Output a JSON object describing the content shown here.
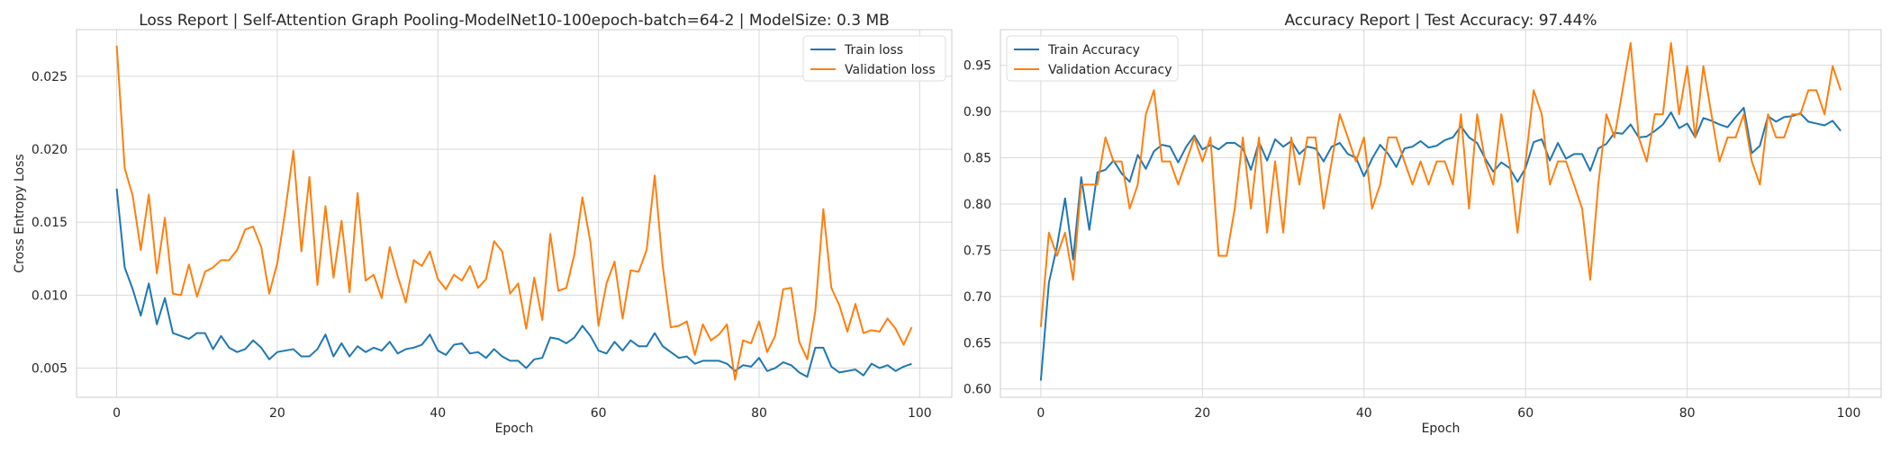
{
  "colors": {
    "train": "#1f77b4",
    "validation": "#ff7f0e",
    "grid": "#d9d9d9",
    "frame": "#cccccc"
  },
  "chart_data": [
    {
      "type": "line",
      "title": "Loss Report | Self-Attention Graph Pooling-ModelNet10-100epoch-batch=64-2 | ModelSize: 0.3 MB",
      "xlabel": "Epoch",
      "ylabel": "Cross Entropy Loss",
      "xlim": [
        -5,
        104
      ],
      "ylim": [
        0.003,
        0.0282
      ],
      "xticks": [
        0,
        20,
        40,
        60,
        80,
        100
      ],
      "yticks": [
        0.005,
        0.01,
        0.015,
        0.02,
        0.025
      ],
      "ytick_labels": [
        "0.005",
        "0.010",
        "0.015",
        "0.020",
        "0.025"
      ],
      "grid": true,
      "legend_position": "top-right",
      "series": [
        {
          "name": "Train loss",
          "color": "#1f77b4",
          "values": [
            0.0173,
            0.0119,
            0.0104,
            0.0086,
            0.0108,
            0.008,
            0.0098,
            0.0074,
            0.0072,
            0.007,
            0.0074,
            0.0074,
            0.0063,
            0.0072,
            0.0064,
            0.0061,
            0.0063,
            0.0069,
            0.0064,
            0.0056,
            0.0061,
            0.0062,
            0.0063,
            0.0058,
            0.0058,
            0.0063,
            0.0073,
            0.0058,
            0.0067,
            0.0058,
            0.0065,
            0.0061,
            0.0064,
            0.0062,
            0.0068,
            0.006,
            0.0063,
            0.0064,
            0.0066,
            0.0073,
            0.0062,
            0.0059,
            0.0066,
            0.0067,
            0.006,
            0.0061,
            0.0057,
            0.0063,
            0.0058,
            0.0055,
            0.0055,
            0.005,
            0.0056,
            0.0057,
            0.0071,
            0.007,
            0.0067,
            0.0071,
            0.0079,
            0.0072,
            0.0062,
            0.006,
            0.0068,
            0.0062,
            0.0069,
            0.0065,
            0.0065,
            0.0074,
            0.0065,
            0.0061,
            0.0057,
            0.0058,
            0.0053,
            0.0055,
            0.0055,
            0.0055,
            0.0053,
            0.0048,
            0.0052,
            0.0051,
            0.0057,
            0.0048,
            0.005,
            0.0054,
            0.0052,
            0.0047,
            0.0044,
            0.0064,
            0.0064,
            0.0051,
            0.0047,
            0.0048,
            0.0049,
            0.0045,
            0.0053,
            0.005,
            0.0052,
            0.0048,
            0.0051,
            0.0053
          ]
        },
        {
          "name": "Validation loss",
          "color": "#ff7f0e",
          "values": [
            0.0271,
            0.0187,
            0.0168,
            0.0131,
            0.0169,
            0.0115,
            0.0153,
            0.0101,
            0.01,
            0.0121,
            0.0099,
            0.0116,
            0.0119,
            0.0124,
            0.0124,
            0.0131,
            0.0145,
            0.0147,
            0.0133,
            0.0101,
            0.0122,
            0.0158,
            0.0199,
            0.013,
            0.0181,
            0.0107,
            0.0161,
            0.0112,
            0.0151,
            0.0102,
            0.017,
            0.011,
            0.0114,
            0.0098,
            0.0133,
            0.0113,
            0.0095,
            0.0124,
            0.012,
            0.013,
            0.0111,
            0.0104,
            0.0114,
            0.011,
            0.012,
            0.0105,
            0.0111,
            0.0137,
            0.013,
            0.0101,
            0.0108,
            0.0077,
            0.0112,
            0.0083,
            0.0142,
            0.0103,
            0.0105,
            0.0128,
            0.0167,
            0.0136,
            0.0079,
            0.0108,
            0.0123,
            0.0084,
            0.0117,
            0.0116,
            0.0131,
            0.0182,
            0.012,
            0.0078,
            0.0079,
            0.0082,
            0.0059,
            0.008,
            0.0069,
            0.0073,
            0.008,
            0.0042,
            0.0069,
            0.0067,
            0.0082,
            0.0061,
            0.0072,
            0.0104,
            0.0105,
            0.0068,
            0.0056,
            0.0089,
            0.0159,
            0.0105,
            0.0093,
            0.0075,
            0.0094,
            0.0074,
            0.0076,
            0.0075,
            0.0084,
            0.0077,
            0.0066,
            0.0078
          ]
        }
      ]
    },
    {
      "type": "line",
      "title": "Accuracy Report | Test Accuracy: 97.44%",
      "xlabel": "Epoch",
      "ylabel": "",
      "xlim": [
        -5,
        104
      ],
      "ylim": [
        0.591,
        0.9885
      ],
      "xticks": [
        0,
        20,
        40,
        60,
        80,
        100
      ],
      "yticks": [
        0.6,
        0.65,
        0.7,
        0.75,
        0.8,
        0.85,
        0.9,
        0.95
      ],
      "ytick_labels": [
        "0.60",
        "0.65",
        "0.70",
        "0.75",
        "0.80",
        "0.85",
        "0.90",
        "0.95"
      ],
      "grid": true,
      "legend_position": "top-left",
      "series": [
        {
          "name": "Train Accuracy",
          "color": "#1f77b4",
          "values": [
            0.609,
            0.715,
            0.754,
            0.806,
            0.74,
            0.829,
            0.772,
            0.834,
            0.837,
            0.847,
            0.833,
            0.824,
            0.853,
            0.838,
            0.857,
            0.864,
            0.862,
            0.845,
            0.862,
            0.874,
            0.859,
            0.864,
            0.859,
            0.866,
            0.866,
            0.86,
            0.837,
            0.867,
            0.847,
            0.87,
            0.862,
            0.868,
            0.854,
            0.862,
            0.86,
            0.846,
            0.862,
            0.866,
            0.854,
            0.85,
            0.83,
            0.849,
            0.864,
            0.854,
            0.84,
            0.86,
            0.862,
            0.868,
            0.861,
            0.863,
            0.869,
            0.872,
            0.884,
            0.872,
            0.866,
            0.849,
            0.835,
            0.845,
            0.839,
            0.824,
            0.839,
            0.867,
            0.87,
            0.847,
            0.866,
            0.849,
            0.854,
            0.854,
            0.836,
            0.86,
            0.865,
            0.877,
            0.876,
            0.886,
            0.872,
            0.873,
            0.879,
            0.886,
            0.899,
            0.882,
            0.887,
            0.872,
            0.893,
            0.89,
            0.886,
            0.883,
            0.894,
            0.904,
            0.855,
            0.863,
            0.895,
            0.889,
            0.894,
            0.895,
            0.898,
            0.889,
            0.887,
            0.885,
            0.89,
            0.879
          ]
        },
        {
          "name": "Validation Accuracy",
          "color": "#ff7f0e",
          "values": [
            0.667,
            0.769,
            0.744,
            0.769,
            0.718,
            0.821,
            0.821,
            0.821,
            0.872,
            0.846,
            0.846,
            0.795,
            0.821,
            0.897,
            0.923,
            0.846,
            0.846,
            0.821,
            0.846,
            0.872,
            0.846,
            0.872,
            0.744,
            0.744,
            0.795,
            0.872,
            0.795,
            0.872,
            0.769,
            0.846,
            0.769,
            0.872,
            0.821,
            0.872,
            0.872,
            0.795,
            0.846,
            0.897,
            0.872,
            0.846,
            0.872,
            0.795,
            0.821,
            0.872,
            0.872,
            0.846,
            0.821,
            0.846,
            0.821,
            0.846,
            0.846,
            0.821,
            0.897,
            0.795,
            0.897,
            0.846,
            0.821,
            0.897,
            0.846,
            0.769,
            0.846,
            0.923,
            0.897,
            0.821,
            0.846,
            0.846,
            0.821,
            0.795,
            0.718,
            0.821,
            0.897,
            0.872,
            0.923,
            0.974,
            0.872,
            0.846,
            0.897,
            0.897,
            0.974,
            0.897,
            0.949,
            0.872,
            0.949,
            0.897,
            0.846,
            0.872,
            0.872,
            0.897,
            0.846,
            0.821,
            0.897,
            0.872,
            0.872,
            0.897,
            0.897,
            0.923,
            0.923,
            0.897,
            0.949,
            0.923
          ]
        }
      ]
    }
  ]
}
